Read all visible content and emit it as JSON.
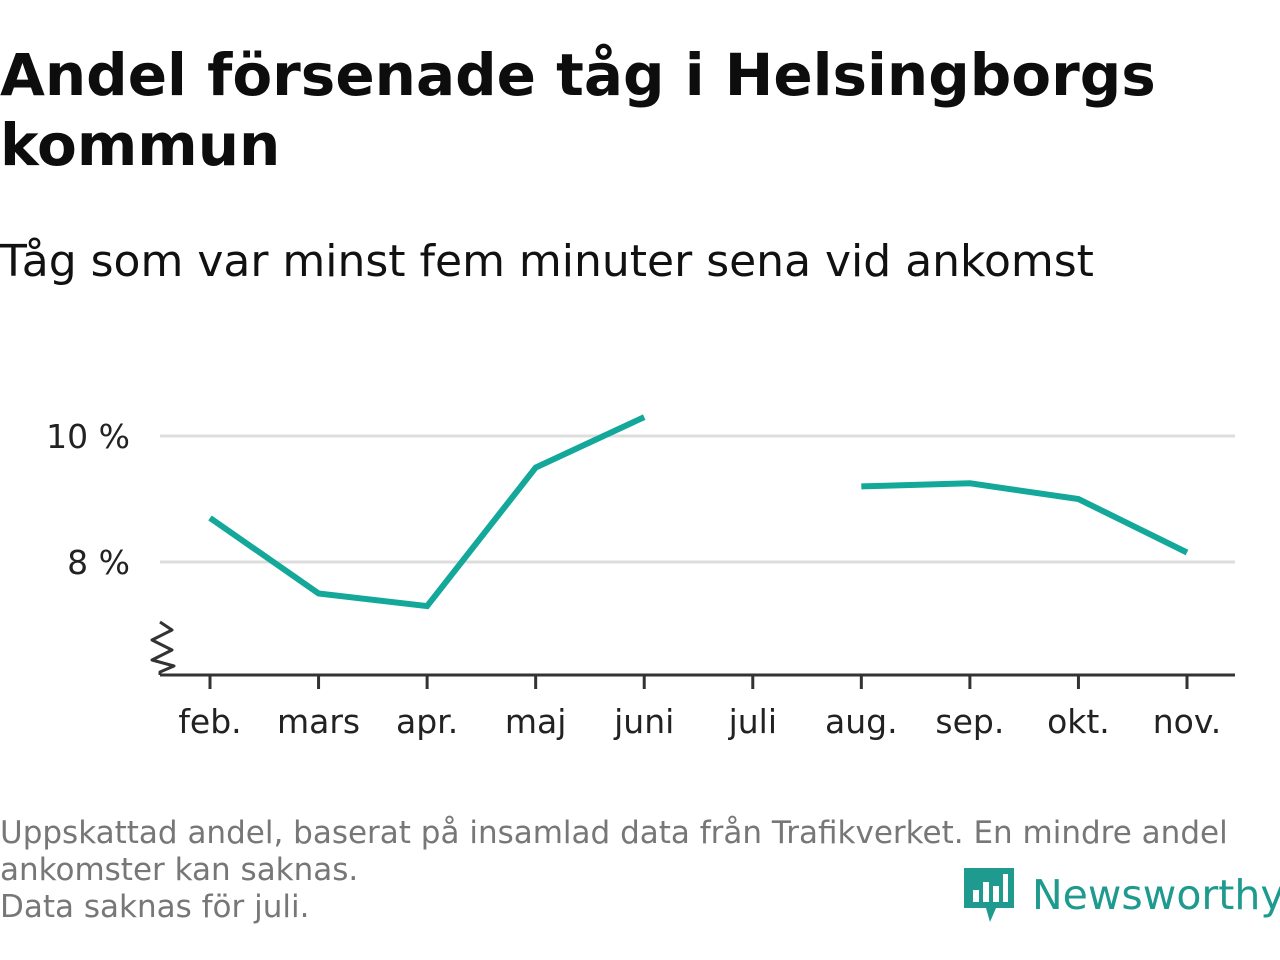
{
  "title": "Andel försenade tåg i Helsingborgs kommun",
  "subtitle": "Tåg som var minst fem minuter sena vid ankomst",
  "footer": {
    "note_line1": "Uppskattad andel, baserat på insamlad data från Trafikverket. En mindre andel",
    "note_line2": "ankomster kan saknas.",
    "note_line3": "Data saknas för juli."
  },
  "brand": {
    "name": "Newsworthy",
    "icon": "newsworthy-logo-icon",
    "color": "#1f9a8e"
  },
  "chart_data": {
    "type": "line",
    "title": "Andel försenade tåg i Helsingborgs kommun",
    "subtitle": "Tåg som var minst fem minuter sena vid ankomst",
    "categories": [
      "feb.",
      "mars",
      "apr.",
      "maj",
      "juni",
      "juli",
      "aug.",
      "sep.",
      "okt.",
      "nov."
    ],
    "series": [
      {
        "values": [
          8.7,
          7.5,
          7.3,
          9.5,
          10.3,
          null,
          9.2,
          9.25,
          9.0,
          8.15
        ],
        "color": "#13a89a"
      }
    ],
    "yticks": [
      8,
      10
    ],
    "ytick_labels": [
      "8 %",
      "10 %"
    ],
    "ylim": [
      6.2,
      10.9
    ],
    "y_axis_break": true,
    "grid": true,
    "legend": "none",
    "colors": {
      "line": "#13a89a",
      "grid": "#dddddd",
      "axis": "#333333"
    }
  }
}
